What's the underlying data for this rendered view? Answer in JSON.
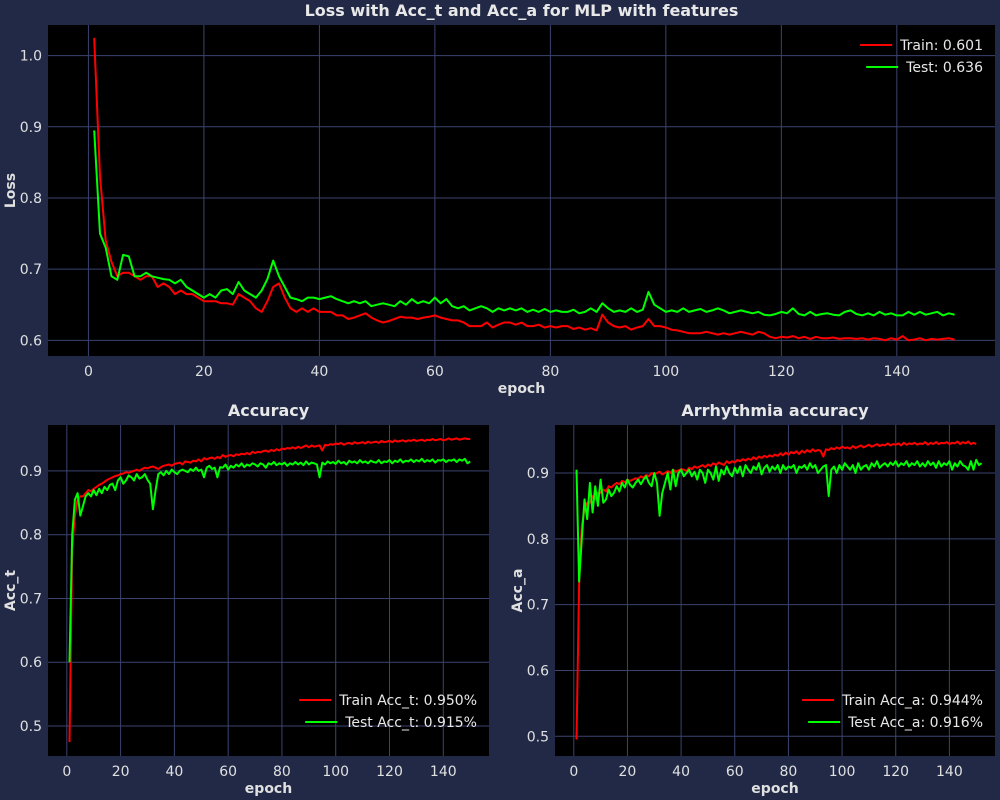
{
  "figure": {
    "background": "#212946",
    "plot_background": "#000000",
    "grid_color": "#3b4470"
  },
  "chart_data": [
    {
      "type": "line",
      "title": "Loss with Acc_t and Acc_a for MLP with features",
      "xlabel": "epoch",
      "ylabel": "Loss",
      "xlim": [
        -7,
        157
      ],
      "ylim": [
        0.578,
        1.043
      ],
      "xticks": [
        0,
        20,
        40,
        60,
        80,
        100,
        120,
        140
      ],
      "yticks": [
        0.6,
        0.7,
        0.8,
        0.9,
        1.0
      ],
      "ytick_labels": [
        "0.6",
        "0.7",
        "0.8",
        "0.9",
        "1.0"
      ],
      "grid": true,
      "legend_position": "top-right",
      "x_start": 1,
      "series": [
        {
          "name": "Train: 0.601",
          "color": "#ff0000",
          "values": [
            1.025,
            0.83,
            0.74,
            0.71,
            0.69,
            0.695,
            0.695,
            0.69,
            0.685,
            0.69,
            0.69,
            0.675,
            0.68,
            0.675,
            0.665,
            0.67,
            0.665,
            0.665,
            0.66,
            0.655,
            0.655,
            0.655,
            0.652,
            0.652,
            0.65,
            0.665,
            0.66,
            0.655,
            0.645,
            0.64,
            0.655,
            0.675,
            0.68,
            0.66,
            0.645,
            0.64,
            0.645,
            0.64,
            0.645,
            0.64,
            0.64,
            0.64,
            0.635,
            0.635,
            0.63,
            0.632,
            0.635,
            0.638,
            0.632,
            0.628,
            0.625,
            0.627,
            0.63,
            0.633,
            0.632,
            0.632,
            0.63,
            0.632,
            0.633,
            0.635,
            0.632,
            0.63,
            0.628,
            0.628,
            0.625,
            0.62,
            0.62,
            0.62,
            0.625,
            0.618,
            0.622,
            0.625,
            0.625,
            0.622,
            0.625,
            0.62,
            0.62,
            0.622,
            0.618,
            0.62,
            0.618,
            0.62,
            0.62,
            0.616,
            0.618,
            0.615,
            0.617,
            0.614,
            0.636,
            0.625,
            0.62,
            0.618,
            0.62,
            0.615,
            0.618,
            0.62,
            0.63,
            0.62,
            0.62,
            0.618,
            0.615,
            0.614,
            0.612,
            0.61,
            0.61,
            0.61,
            0.612,
            0.61,
            0.608,
            0.61,
            0.608,
            0.61,
            0.612,
            0.61,
            0.608,
            0.612,
            0.61,
            0.605,
            0.603,
            0.605,
            0.604,
            0.606,
            0.603,
            0.605,
            0.602,
            0.605,
            0.603,
            0.603,
            0.604,
            0.602,
            0.603,
            0.603,
            0.602,
            0.603,
            0.601,
            0.603,
            0.602,
            0.6,
            0.603,
            0.601,
            0.606,
            0.6,
            0.601,
            0.603,
            0.6,
            0.602,
            0.601,
            0.602,
            0.603,
            0.601
          ]
        },
        {
          "name": "Test: 0.636",
          "color": "#00ff00",
          "values": [
            0.895,
            0.75,
            0.73,
            0.69,
            0.685,
            0.72,
            0.718,
            0.69,
            0.69,
            0.695,
            0.69,
            0.688,
            0.686,
            0.685,
            0.68,
            0.685,
            0.675,
            0.67,
            0.665,
            0.66,
            0.665,
            0.66,
            0.67,
            0.672,
            0.665,
            0.682,
            0.67,
            0.665,
            0.66,
            0.67,
            0.686,
            0.712,
            0.69,
            0.675,
            0.66,
            0.658,
            0.655,
            0.66,
            0.66,
            0.658,
            0.66,
            0.662,
            0.658,
            0.655,
            0.652,
            0.655,
            0.652,
            0.655,
            0.648,
            0.65,
            0.652,
            0.65,
            0.648,
            0.655,
            0.65,
            0.658,
            0.652,
            0.655,
            0.652,
            0.66,
            0.652,
            0.658,
            0.648,
            0.645,
            0.648,
            0.642,
            0.645,
            0.648,
            0.645,
            0.64,
            0.645,
            0.642,
            0.645,
            0.642,
            0.645,
            0.64,
            0.643,
            0.64,
            0.644,
            0.64,
            0.642,
            0.64,
            0.64,
            0.643,
            0.638,
            0.64,
            0.645,
            0.64,
            0.652,
            0.645,
            0.64,
            0.642,
            0.64,
            0.645,
            0.64,
            0.643,
            0.668,
            0.65,
            0.645,
            0.64,
            0.642,
            0.64,
            0.645,
            0.64,
            0.642,
            0.644,
            0.64,
            0.642,
            0.645,
            0.642,
            0.638,
            0.64,
            0.642,
            0.64,
            0.638,
            0.64,
            0.636,
            0.635,
            0.637,
            0.64,
            0.638,
            0.645,
            0.637,
            0.635,
            0.64,
            0.635,
            0.637,
            0.638,
            0.636,
            0.635,
            0.64,
            0.642,
            0.637,
            0.635,
            0.638,
            0.635,
            0.64,
            0.636,
            0.638,
            0.635,
            0.635,
            0.64,
            0.636,
            0.64,
            0.636,
            0.638,
            0.64,
            0.635,
            0.638,
            0.636
          ]
        }
      ]
    },
    {
      "type": "line",
      "title": "Accuracy",
      "xlabel": "epoch",
      "ylabel": "Acc_t",
      "xlim": [
        -7,
        157
      ],
      "ylim": [
        0.453,
        0.972
      ],
      "xticks": [
        0,
        20,
        40,
        60,
        80,
        100,
        120,
        140
      ],
      "yticks": [
        0.5,
        0.6,
        0.7,
        0.8,
        0.9
      ],
      "ytick_labels": [
        "0.5",
        "0.6",
        "0.7",
        "0.8",
        "0.9"
      ],
      "grid": true,
      "legend_position": "bottom-right",
      "x_start": 1,
      "series": [
        {
          "name": "Train Acc_t: 0.950%",
          "color": "#ff0000",
          "values": [
            0.475,
            0.78,
            0.83,
            0.855,
            0.86,
            0.86,
            0.865,
            0.87,
            0.868,
            0.872,
            0.875,
            0.878,
            0.88,
            0.883,
            0.886,
            0.888,
            0.89,
            0.892,
            0.893,
            0.895,
            0.896,
            0.898,
            0.897,
            0.899,
            0.9,
            0.902,
            0.9,
            0.903,
            0.905,
            0.904,
            0.906,
            0.907,
            0.905,
            0.903,
            0.906,
            0.908,
            0.909,
            0.91,
            0.908,
            0.911,
            0.912,
            0.913,
            0.91,
            0.915,
            0.914,
            0.913,
            0.916,
            0.915,
            0.918,
            0.915,
            0.92,
            0.918,
            0.92,
            0.921,
            0.919,
            0.922,
            0.92,
            0.925,
            0.922,
            0.924,
            0.925,
            0.923,
            0.926,
            0.925,
            0.927,
            0.926,
            0.928,
            0.926,
            0.93,
            0.928,
            0.93,
            0.929,
            0.931,
            0.932,
            0.93,
            0.933,
            0.931,
            0.934,
            0.932,
            0.935,
            0.934,
            0.936,
            0.935,
            0.937,
            0.935,
            0.938,
            0.936,
            0.938,
            0.94,
            0.937,
            0.94,
            0.938,
            0.939,
            0.94,
            0.932,
            0.941,
            0.94,
            0.942,
            0.941,
            0.943,
            0.942,
            0.944,
            0.941,
            0.943,
            0.944,
            0.942,
            0.945,
            0.943,
            0.944,
            0.945,
            0.943,
            0.946,
            0.944,
            0.945,
            0.946,
            0.944,
            0.947,
            0.945,
            0.946,
            0.947,
            0.945,
            0.948,
            0.946,
            0.947,
            0.948,
            0.946,
            0.948,
            0.947,
            0.949,
            0.947,
            0.948,
            0.949,
            0.947,
            0.949,
            0.948,
            0.95,
            0.948,
            0.949,
            0.95,
            0.948,
            0.949,
            0.951,
            0.949,
            0.95,
            0.951,
            0.949,
            0.95,
            0.951,
            0.95,
            0.95
          ]
        },
        {
          "name": "Test Acc_t: 0.915%",
          "color": "#00ff00",
          "values": [
            0.6,
            0.8,
            0.855,
            0.865,
            0.83,
            0.845,
            0.86,
            0.865,
            0.86,
            0.87,
            0.862,
            0.872,
            0.865,
            0.875,
            0.87,
            0.878,
            0.88,
            0.87,
            0.885,
            0.89,
            0.88,
            0.885,
            0.893,
            0.89,
            0.885,
            0.895,
            0.888,
            0.89,
            0.895,
            0.886,
            0.88,
            0.84,
            0.87,
            0.895,
            0.898,
            0.893,
            0.9,
            0.895,
            0.902,
            0.898,
            0.895,
            0.9,
            0.902,
            0.9,
            0.898,
            0.903,
            0.9,
            0.905,
            0.9,
            0.902,
            0.89,
            0.905,
            0.908,
            0.903,
            0.905,
            0.89,
            0.906,
            0.905,
            0.91,
            0.902,
            0.908,
            0.905,
            0.91,
            0.907,
            0.912,
            0.906,
            0.91,
            0.908,
            0.912,
            0.91,
            0.907,
            0.912,
            0.91,
            0.905,
            0.912,
            0.91,
            0.914,
            0.909,
            0.912,
            0.91,
            0.913,
            0.908,
            0.912,
            0.91,
            0.914,
            0.91,
            0.913,
            0.909,
            0.915,
            0.91,
            0.913,
            0.912,
            0.91,
            0.89,
            0.913,
            0.91,
            0.915,
            0.912,
            0.914,
            0.911,
            0.916,
            0.912,
            0.914,
            0.91,
            0.916,
            0.913,
            0.915,
            0.912,
            0.917,
            0.913,
            0.915,
            0.912,
            0.916,
            0.914,
            0.913,
            0.917,
            0.912,
            0.915,
            0.914,
            0.917,
            0.912,
            0.916,
            0.914,
            0.918,
            0.913,
            0.916,
            0.915,
            0.918,
            0.914,
            0.917,
            0.915,
            0.919,
            0.914,
            0.917,
            0.915,
            0.918,
            0.913,
            0.917,
            0.916,
            0.918,
            0.914,
            0.917,
            0.916,
            0.918,
            0.914,
            0.918,
            0.916,
            0.919,
            0.912,
            0.915
          ]
        }
      ]
    },
    {
      "type": "line",
      "title": "Arrhythmia accuracy",
      "xlabel": "epoch",
      "ylabel": "Acc_a",
      "xlim": [
        -7,
        157
      ],
      "ylim": [
        0.47,
        0.973
      ],
      "xticks": [
        0,
        20,
        40,
        60,
        80,
        100,
        120,
        140
      ],
      "yticks": [
        0.5,
        0.6,
        0.7,
        0.8,
        0.9
      ],
      "ytick_labels": [
        "0.5",
        "0.6",
        "0.7",
        "0.8",
        "0.9"
      ],
      "grid": true,
      "legend_position": "bottom-right",
      "x_start": 1,
      "series": [
        {
          "name": "Train Acc_a: 0.944%",
          "color": "#ff0000",
          "values": [
            0.495,
            0.73,
            0.82,
            0.845,
            0.855,
            0.855,
            0.865,
            0.86,
            0.87,
            0.87,
            0.875,
            0.872,
            0.88,
            0.878,
            0.882,
            0.885,
            0.883,
            0.888,
            0.886,
            0.89,
            0.888,
            0.89,
            0.892,
            0.891,
            0.895,
            0.893,
            0.897,
            0.895,
            0.9,
            0.898,
            0.9,
            0.902,
            0.898,
            0.9,
            0.903,
            0.9,
            0.905,
            0.902,
            0.904,
            0.906,
            0.905,
            0.903,
            0.908,
            0.906,
            0.91,
            0.908,
            0.91,
            0.912,
            0.909,
            0.913,
            0.911,
            0.915,
            0.912,
            0.916,
            0.914,
            0.912,
            0.918,
            0.915,
            0.918,
            0.916,
            0.92,
            0.918,
            0.921,
            0.919,
            0.922,
            0.92,
            0.924,
            0.921,
            0.925,
            0.923,
            0.926,
            0.924,
            0.927,
            0.925,
            0.928,
            0.926,
            0.93,
            0.927,
            0.931,
            0.928,
            0.932,
            0.93,
            0.933,
            0.929,
            0.934,
            0.931,
            0.935,
            0.932,
            0.936,
            0.933,
            0.935,
            0.934,
            0.925,
            0.936,
            0.935,
            0.938,
            0.936,
            0.939,
            0.937,
            0.94,
            0.938,
            0.939,
            0.937,
            0.941,
            0.938,
            0.94,
            0.942,
            0.939,
            0.941,
            0.943,
            0.94,
            0.942,
            0.944,
            0.941,
            0.943,
            0.942,
            0.945,
            0.942,
            0.944,
            0.943,
            0.945,
            0.942,
            0.946,
            0.943,
            0.945,
            0.944,
            0.946,
            0.943,
            0.945,
            0.944,
            0.947,
            0.943,
            0.946,
            0.944,
            0.947,
            0.944,
            0.946,
            0.945,
            0.947,
            0.944,
            0.946,
            0.945,
            0.948,
            0.944,
            0.947,
            0.945,
            0.948,
            0.944,
            0.946,
            0.944
          ]
        },
        {
          "name": "Test Acc_a: 0.916%",
          "color": "#00ff00",
          "values": [
            0.905,
            0.735,
            0.8,
            0.86,
            0.83,
            0.885,
            0.84,
            0.88,
            0.85,
            0.89,
            0.855,
            0.86,
            0.875,
            0.865,
            0.87,
            0.88,
            0.872,
            0.885,
            0.878,
            0.89,
            0.882,
            0.878,
            0.885,
            0.89,
            0.883,
            0.89,
            0.895,
            0.885,
            0.88,
            0.9,
            0.885,
            0.835,
            0.87,
            0.885,
            0.9,
            0.875,
            0.905,
            0.88,
            0.9,
            0.905,
            0.895,
            0.9,
            0.905,
            0.895,
            0.902,
            0.89,
            0.905,
            0.9,
            0.885,
            0.905,
            0.9,
            0.89,
            0.91,
            0.888,
            0.905,
            0.898,
            0.91,
            0.9,
            0.895,
            0.908,
            0.9,
            0.91,
            0.895,
            0.912,
            0.905,
            0.9,
            0.91,
            0.905,
            0.915,
            0.898,
            0.908,
            0.912,
            0.902,
            0.91,
            0.905,
            0.912,
            0.9,
            0.912,
            0.905,
            0.91,
            0.908,
            0.912,
            0.9,
            0.91,
            0.908,
            0.912,
            0.905,
            0.915,
            0.908,
            0.912,
            0.9,
            0.905,
            0.91,
            0.912,
            0.865,
            0.905,
            0.91,
            0.9,
            0.912,
            0.905,
            0.915,
            0.91,
            0.905,
            0.912,
            0.9,
            0.915,
            0.905,
            0.91,
            0.912,
            0.905,
            0.915,
            0.91,
            0.918,
            0.908,
            0.912,
            0.915,
            0.91,
            0.916,
            0.912,
            0.918,
            0.91,
            0.915,
            0.912,
            0.918,
            0.91,
            0.915,
            0.912,
            0.918,
            0.91,
            0.915,
            0.91,
            0.918,
            0.912,
            0.916,
            0.908,
            0.918,
            0.91,
            0.915,
            0.912,
            0.918,
            0.905,
            0.915,
            0.91,
            0.918,
            0.912,
            0.91,
            0.905,
            0.918,
            0.905,
            0.92,
            0.912,
            0.915
          ]
        }
      ]
    }
  ]
}
